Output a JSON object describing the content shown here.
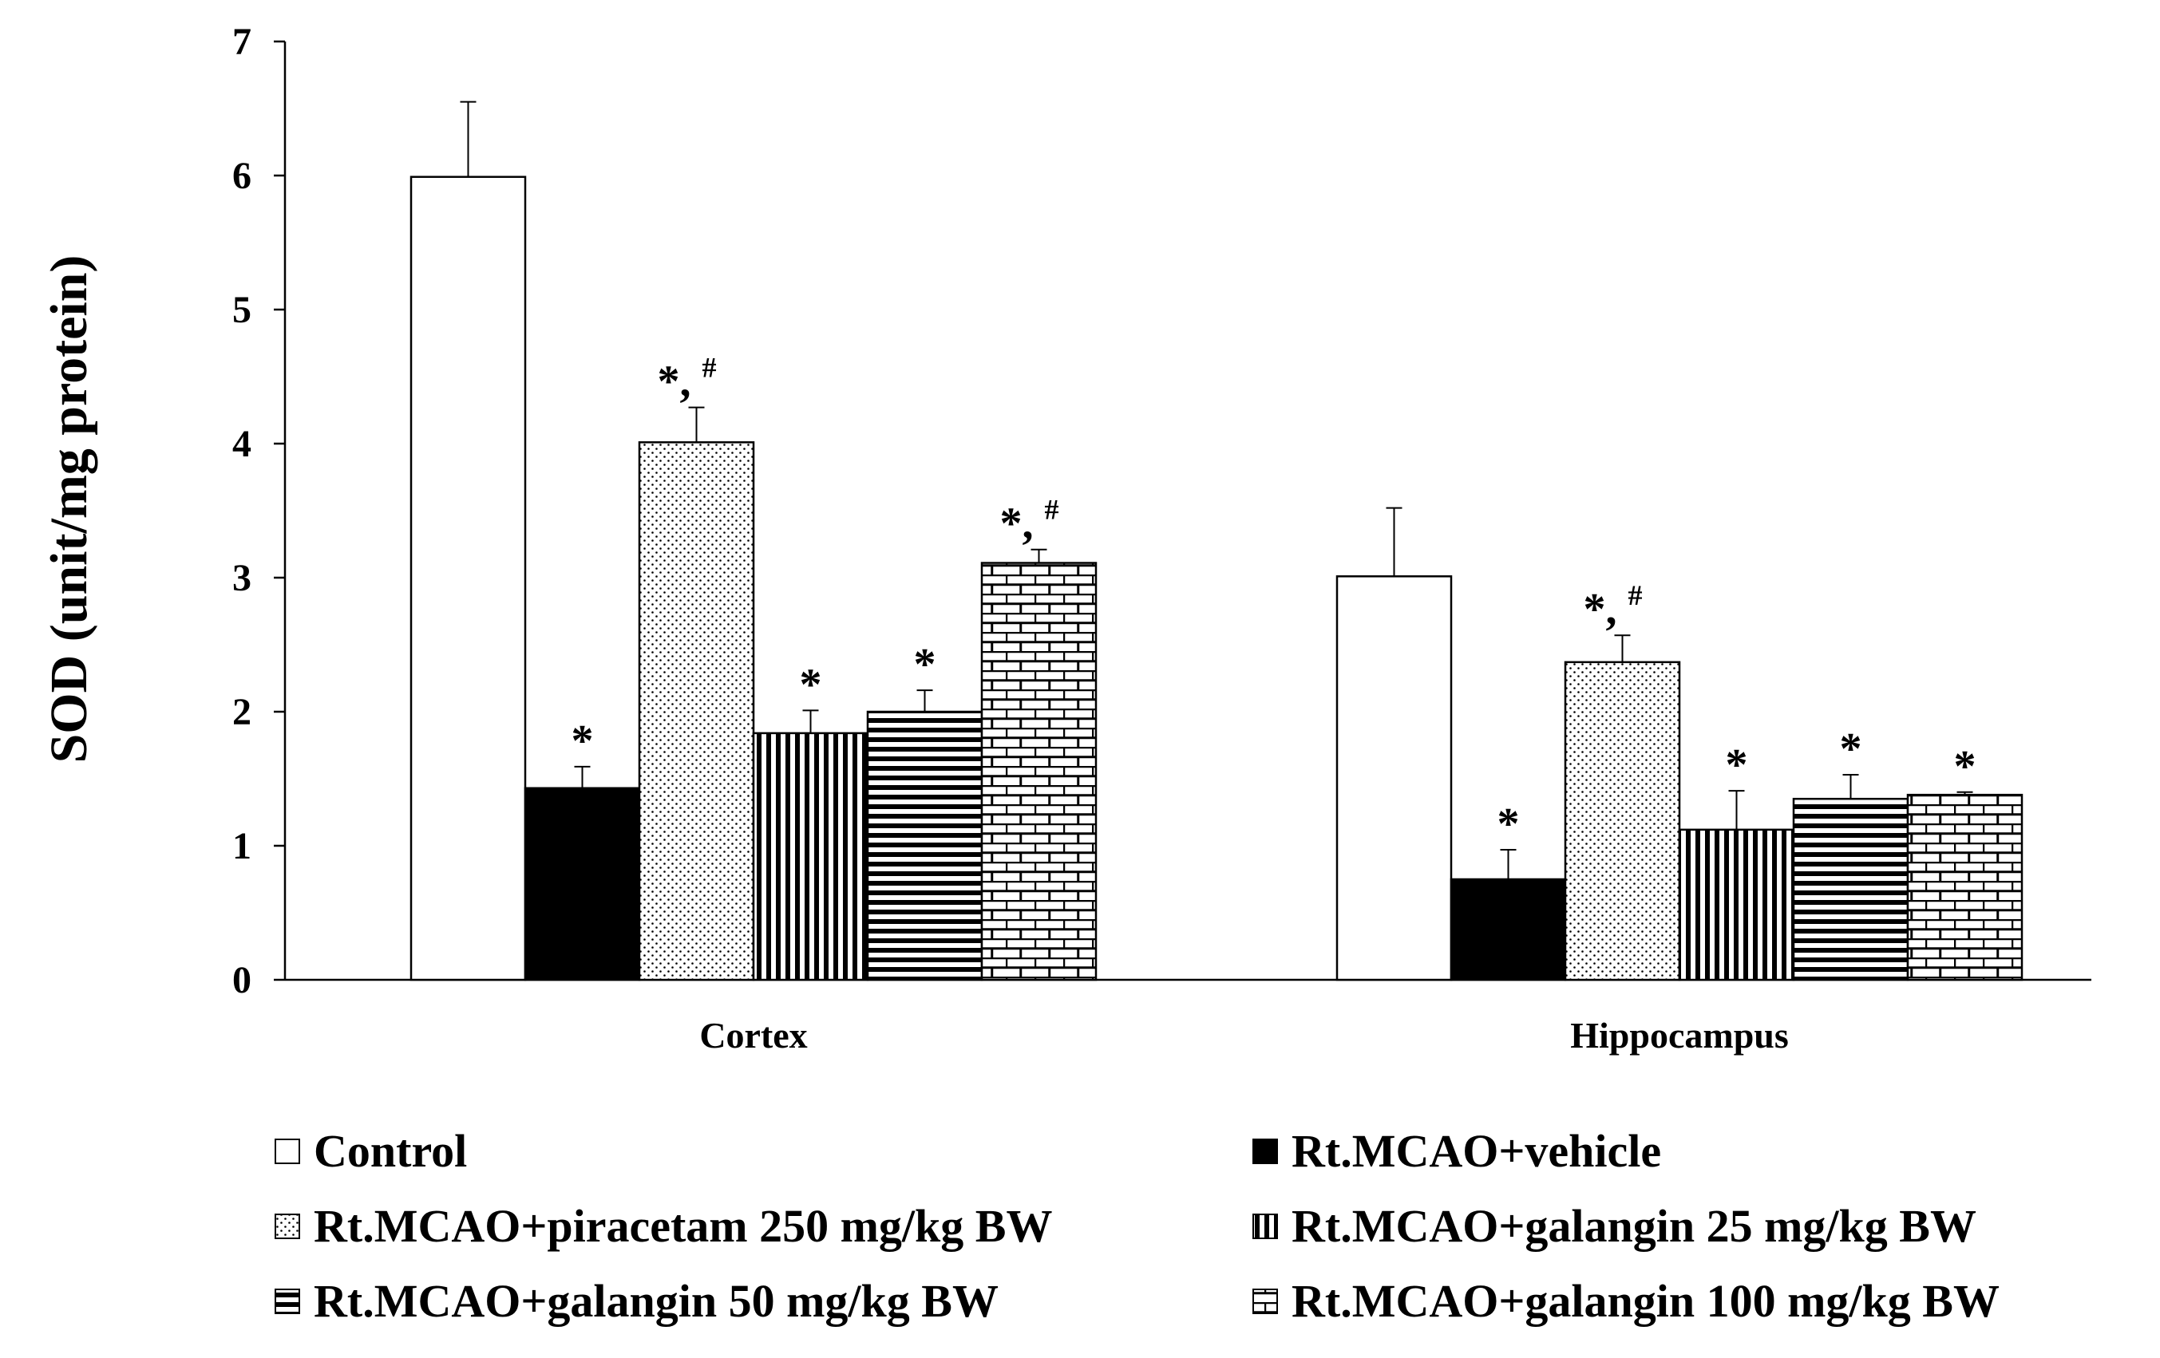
{
  "chart_data": {
    "type": "bar",
    "title": "",
    "ylabel": "SOD (unit/mg protein)",
    "xlabel": "",
    "ylim": [
      0,
      7
    ],
    "yticks": [
      0,
      1,
      2,
      3,
      4,
      5,
      6,
      7
    ],
    "grid": false,
    "legend_position": "bottom",
    "categories": [
      "Cortex",
      "Hippocampus"
    ],
    "series": [
      {
        "name": "Control",
        "pattern": "white",
        "values": [
          5.99,
          3.01
        ],
        "errors": [
          0.56,
          0.51
        ],
        "annotations": [
          "",
          ""
        ]
      },
      {
        "name": "Rt.MCAO+vehicle",
        "pattern": "black",
        "values": [
          1.43,
          0.75
        ],
        "errors": [
          0.16,
          0.22
        ],
        "annotations": [
          "*",
          "*"
        ]
      },
      {
        "name": "Rt.MCAO+piracetam 250 mg/kg BW",
        "pattern": "dots",
        "values": [
          4.01,
          2.37
        ],
        "errors": [
          0.26,
          0.2
        ],
        "annotations": [
          "*, #",
          "*, #"
        ]
      },
      {
        "name": "Rt.MCAO+galangin 25 mg/kg BW",
        "pattern": "vertical",
        "values": [
          1.84,
          1.12
        ],
        "errors": [
          0.17,
          0.29
        ],
        "annotations": [
          "*",
          "*"
        ]
      },
      {
        "name": "Rt.MCAO+galangin 50 mg/kg BW",
        "pattern": "horizontal",
        "values": [
          2.0,
          1.35
        ],
        "errors": [
          0.16,
          0.18
        ],
        "annotations": [
          "*",
          "*"
        ]
      },
      {
        "name": "Rt.MCAO+galangin 100 mg/kg BW",
        "pattern": "brick",
        "values": [
          3.11,
          1.38
        ],
        "errors": [
          0.1,
          0.02
        ],
        "annotations": [
          "*, #",
          "*"
        ]
      }
    ]
  }
}
